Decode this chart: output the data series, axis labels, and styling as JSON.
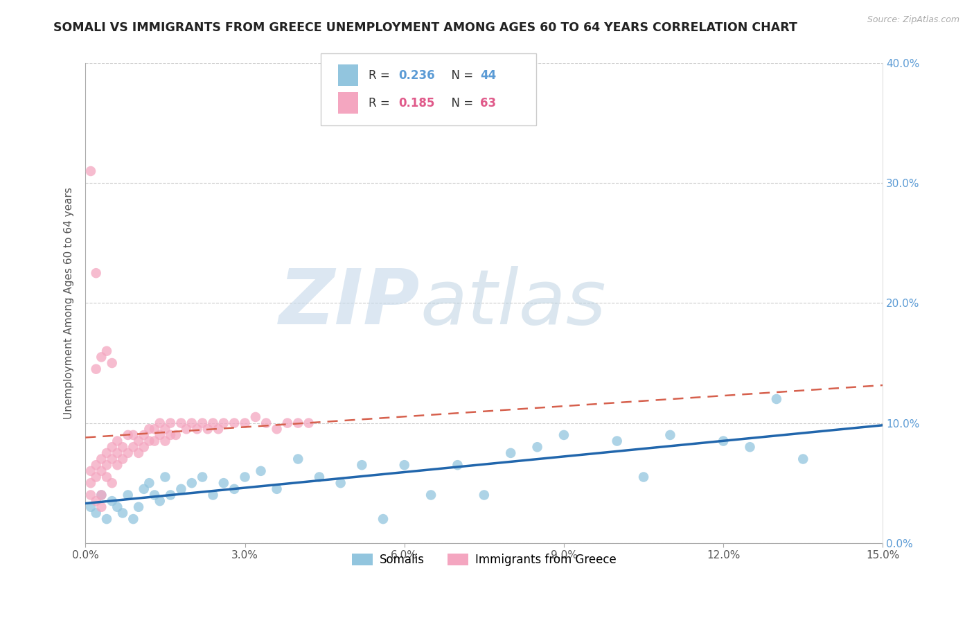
{
  "title": "SOMALI VS IMMIGRANTS FROM GREECE UNEMPLOYMENT AMONG AGES 60 TO 64 YEARS CORRELATION CHART",
  "source": "Source: ZipAtlas.com",
  "ylabel": "Unemployment Among Ages 60 to 64 years",
  "xlim": [
    0.0,
    0.15
  ],
  "ylim": [
    0.0,
    0.4
  ],
  "xtick_vals": [
    0.0,
    0.03,
    0.06,
    0.09,
    0.12,
    0.15
  ],
  "xticklabels": [
    "0.0%",
    "3.0%",
    "6.0%",
    "9.0%",
    "12.0%",
    "15.0%"
  ],
  "ytick_vals": [
    0.0,
    0.1,
    0.2,
    0.3,
    0.4
  ],
  "yticklabels_right": [
    "0.0%",
    "10.0%",
    "20.0%",
    "30.0%",
    "40.0%"
  ],
  "somali_R": 0.236,
  "somali_N": 44,
  "greece_R": 0.185,
  "greece_N": 63,
  "somali_color": "#92c5de",
  "greece_color": "#f4a6c0",
  "somali_line_color": "#2166ac",
  "greece_line_color": "#d6604d",
  "watermark_zip": "ZIP",
  "watermark_atlas": "atlas",
  "watermark_color": "#d0e4f0",
  "legend_somali": "Somalis",
  "legend_greece": "Immigrants from Greece",
  "somali_x": [
    0.001,
    0.002,
    0.003,
    0.004,
    0.005,
    0.006,
    0.007,
    0.008,
    0.009,
    0.01,
    0.011,
    0.012,
    0.013,
    0.014,
    0.015,
    0.016,
    0.018,
    0.02,
    0.022,
    0.024,
    0.026,
    0.028,
    0.03,
    0.033,
    0.036,
    0.04,
    0.044,
    0.048,
    0.052,
    0.056,
    0.06,
    0.065,
    0.07,
    0.075,
    0.08,
    0.085,
    0.09,
    0.1,
    0.105,
    0.11,
    0.12,
    0.125,
    0.13,
    0.135
  ],
  "somali_y": [
    0.03,
    0.025,
    0.04,
    0.02,
    0.035,
    0.03,
    0.025,
    0.04,
    0.02,
    0.03,
    0.045,
    0.05,
    0.04,
    0.035,
    0.055,
    0.04,
    0.045,
    0.05,
    0.055,
    0.04,
    0.05,
    0.045,
    0.055,
    0.06,
    0.045,
    0.07,
    0.055,
    0.05,
    0.065,
    0.02,
    0.065,
    0.04,
    0.065,
    0.04,
    0.075,
    0.08,
    0.09,
    0.085,
    0.055,
    0.09,
    0.085,
    0.08,
    0.12,
    0.07
  ],
  "greece_x": [
    0.001,
    0.001,
    0.001,
    0.002,
    0.002,
    0.002,
    0.003,
    0.003,
    0.003,
    0.004,
    0.004,
    0.004,
    0.005,
    0.005,
    0.005,
    0.006,
    0.006,
    0.006,
    0.007,
    0.007,
    0.008,
    0.008,
    0.009,
    0.009,
    0.01,
    0.01,
    0.011,
    0.011,
    0.012,
    0.012,
    0.013,
    0.013,
    0.014,
    0.014,
    0.015,
    0.015,
    0.016,
    0.016,
    0.017,
    0.018,
    0.019,
    0.02,
    0.021,
    0.022,
    0.023,
    0.024,
    0.025,
    0.026,
    0.028,
    0.03,
    0.032,
    0.034,
    0.036,
    0.038,
    0.04,
    0.042,
    0.002,
    0.003,
    0.004,
    0.005,
    0.001,
    0.002,
    0.003
  ],
  "greece_y": [
    0.04,
    0.05,
    0.06,
    0.035,
    0.055,
    0.065,
    0.04,
    0.06,
    0.07,
    0.055,
    0.065,
    0.075,
    0.05,
    0.07,
    0.08,
    0.065,
    0.075,
    0.085,
    0.07,
    0.08,
    0.075,
    0.09,
    0.08,
    0.09,
    0.075,
    0.085,
    0.08,
    0.09,
    0.085,
    0.095,
    0.085,
    0.095,
    0.09,
    0.1,
    0.085,
    0.095,
    0.09,
    0.1,
    0.09,
    0.1,
    0.095,
    0.1,
    0.095,
    0.1,
    0.095,
    0.1,
    0.095,
    0.1,
    0.1,
    0.1,
    0.105,
    0.1,
    0.095,
    0.1,
    0.1,
    0.1,
    0.145,
    0.155,
    0.16,
    0.15,
    0.31,
    0.225,
    0.03
  ]
}
